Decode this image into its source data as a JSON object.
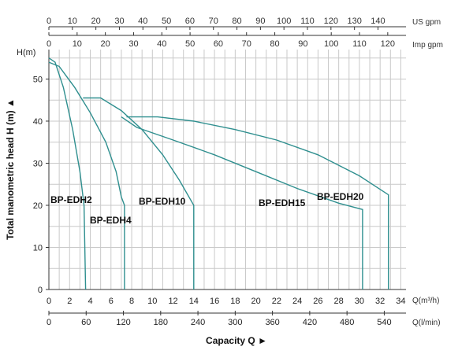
{
  "chart_data": {
    "type": "line",
    "title": "",
    "ylabel": "Total manometric head H (m) ▲",
    "xlabel": "Capacity Q ►",
    "y_unit": "H(m)",
    "ylim": [
      0,
      57
    ],
    "xlim": [
      0,
      34.5
    ],
    "y_ticks": [
      0,
      10,
      20,
      30,
      40,
      50
    ],
    "x_ticks_m3h": [
      0,
      2,
      4,
      6,
      8,
      10,
      12,
      14,
      16,
      18,
      20,
      22,
      24,
      26,
      28,
      30,
      32,
      34
    ],
    "x_unit_m3h": "Q(m³/h)",
    "x_ticks_lmin": [
      0,
      60,
      120,
      180,
      240,
      300,
      360,
      420,
      480,
      540
    ],
    "x_unit_lmin": "Q(l/min)",
    "top_ticks_usgpm": [
      0,
      10,
      20,
      30,
      40,
      50,
      60,
      70,
      80,
      90,
      100,
      110,
      120,
      130,
      140
    ],
    "top_unit_usgpm": "US gpm",
    "top_ticks_impgpm": [
      0,
      10,
      20,
      30,
      40,
      50,
      60,
      70,
      80,
      90,
      100,
      110,
      120
    ],
    "top_unit_impgpm": "Imp gpm",
    "grid": true,
    "series": [
      {
        "name": "BP-EDH2",
        "points": [
          [
            0,
            55
          ],
          [
            0.6,
            54
          ],
          [
            1.4,
            48
          ],
          [
            2.3,
            38
          ],
          [
            3.0,
            28
          ],
          [
            3.4,
            20
          ],
          [
            3.55,
            0
          ]
        ]
      },
      {
        "name": "BP-EDH4",
        "points": [
          [
            0,
            54
          ],
          [
            1,
            53
          ],
          [
            2.5,
            48
          ],
          [
            4,
            42
          ],
          [
            5.5,
            35
          ],
          [
            6.5,
            28
          ],
          [
            7.0,
            22
          ],
          [
            7.3,
            20
          ],
          [
            7.3,
            0
          ]
        ]
      },
      {
        "name": "BP-EDH10",
        "points": [
          [
            3.3,
            45.5
          ],
          [
            5.0,
            45.5
          ],
          [
            7.0,
            42.5
          ],
          [
            9.0,
            38
          ],
          [
            11.0,
            32
          ],
          [
            12.6,
            26
          ],
          [
            14.0,
            20
          ],
          [
            14.0,
            0
          ]
        ]
      },
      {
        "name": "BP-EDH15",
        "points": [
          [
            7.0,
            41
          ],
          [
            8.5,
            38.5
          ],
          [
            12,
            35.5
          ],
          [
            16,
            32
          ],
          [
            20,
            28
          ],
          [
            24,
            24
          ],
          [
            28,
            20.5
          ],
          [
            30.3,
            19
          ],
          [
            30.3,
            0
          ]
        ]
      },
      {
        "name": "BP-EDH20",
        "points": [
          [
            7.5,
            41
          ],
          [
            10.5,
            41
          ],
          [
            14,
            40
          ],
          [
            18,
            38
          ],
          [
            22,
            35.5
          ],
          [
            26,
            32
          ],
          [
            30,
            27
          ],
          [
            32.8,
            22.5
          ],
          [
            32.8,
            0
          ]
        ]
      }
    ],
    "series_labels": [
      "BP-EDH2",
      "BP-EDH4",
      "BP-EDH10",
      "BP-EDH15",
      "BP-EDH20"
    ],
    "colors": {
      "curve": "#2f8f8f",
      "grid": "#c9c9c9",
      "text": "#111111"
    }
  }
}
